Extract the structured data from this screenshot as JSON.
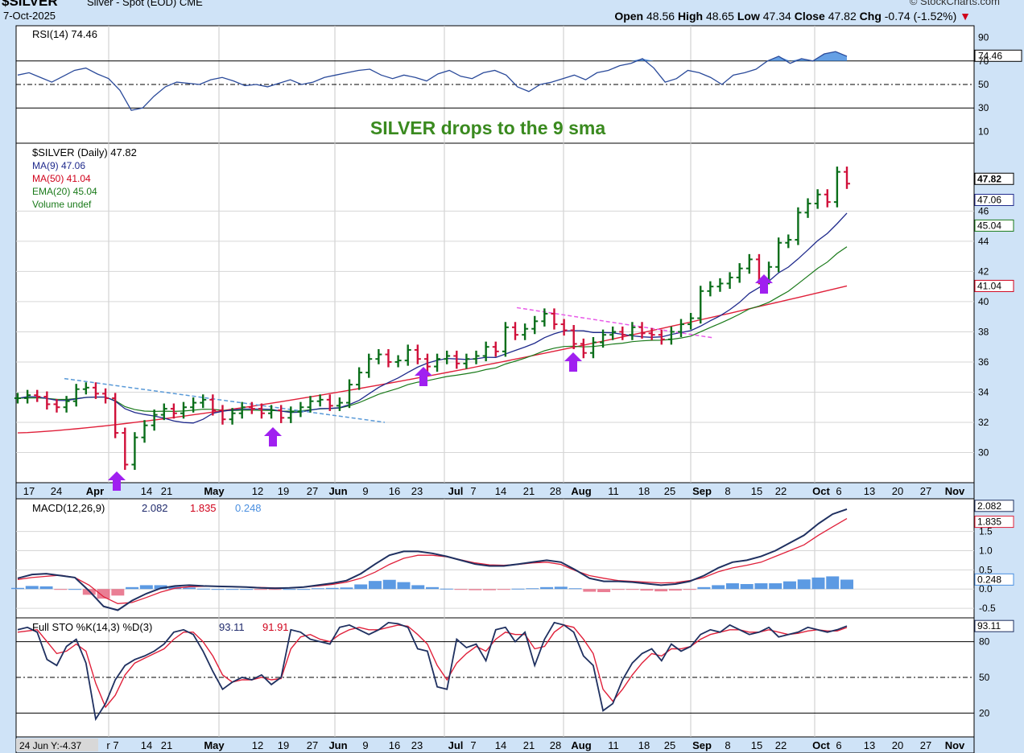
{
  "header": {
    "symbol": "$SILVER",
    "description": "Silver - Spot (EOD) CME",
    "date": "7-Oct-2025",
    "brand": "© StockCharts.com",
    "ohlc": {
      "open_label": "Open",
      "open": "48.56",
      "high_label": "High",
      "high": "48.65",
      "low_label": "Low",
      "low": "47.34",
      "close_label": "Close",
      "close": "47.82",
      "chg_label": "Chg",
      "chg": "-0.74 (-1.52%)"
    }
  },
  "annotation": {
    "text": "SILVER drops to the 9 sma",
    "color": "#3a8a1f"
  },
  "footer_readout": "24 Jun Y:-4.37",
  "x_axis": {
    "labels": [
      "17",
      "24",
      "Apr",
      "14",
      "21",
      "May",
      "12",
      "19",
      "27",
      "Jun",
      "9",
      "16",
      "23",
      "Jul",
      "7",
      "14",
      "21",
      "28",
      "Aug",
      "11",
      "18",
      "25",
      "Sep",
      "8",
      "15",
      "22",
      "Oct",
      "6",
      "13",
      "20",
      "27",
      "Nov"
    ],
    "bottom_labels": [
      "r 7",
      "14",
      "21",
      "May",
      "12",
      "19",
      "27",
      "Jun",
      "9",
      "16",
      "23",
      "Jul",
      "7",
      "14",
      "21",
      "28",
      "Aug",
      "11",
      "18",
      "25",
      "Sep",
      "8",
      "15",
      "22",
      "Oct",
      "6",
      "13",
      "20",
      "27",
      "Nov"
    ]
  },
  "chart_data": [
    {
      "type": "line",
      "panel": "rsi",
      "legend": "RSI(14) 74.46",
      "series": [
        {
          "name": "RSI(14)",
          "values": [
            58,
            60,
            56,
            52,
            57,
            62,
            64,
            59,
            55,
            45,
            28,
            30,
            40,
            48,
            52,
            51,
            50,
            54,
            56,
            53,
            49,
            50,
            48,
            51,
            54,
            50,
            52,
            56,
            58,
            60,
            62,
            63,
            58,
            55,
            58,
            56,
            53,
            59,
            62,
            57,
            55,
            60,
            62,
            58,
            48,
            44,
            50,
            52,
            55,
            58,
            54,
            60,
            62,
            66,
            68,
            72,
            64,
            52,
            55,
            62,
            60,
            56,
            50,
            58,
            60,
            63,
            70,
            74,
            68,
            72,
            70,
            76,
            78,
            74
          ]
        }
      ],
      "current_label": "74.46",
      "y_ticks": [
        "90",
        "70",
        "50",
        "30",
        "10"
      ],
      "ylim": [
        0,
        100
      ],
      "reference_lines": [
        70,
        50,
        30
      ]
    },
    {
      "type": "ohlc",
      "panel": "price",
      "legend": {
        "title": "$SILVER (Daily) 47.82",
        "ma9": "MA(9) 47.06",
        "ma50": "MA(50) 41.04",
        "ema20": "EMA(20) 45.04",
        "volume": "Volume undef"
      },
      "close": [
        33.6,
        33.8,
        33.7,
        33.2,
        33.0,
        33.4,
        34.2,
        34.3,
        33.9,
        33.6,
        31.3,
        29.2,
        31.0,
        31.8,
        32.5,
        32.9,
        32.6,
        33.0,
        33.3,
        33.5,
        32.8,
        32.2,
        32.6,
        33.0,
        32.9,
        32.6,
        32.8,
        32.3,
        32.7,
        33.0,
        33.4,
        33.5,
        33.1,
        33.3,
        34.5,
        35.3,
        36.2,
        36.5,
        36.0,
        36.1,
        36.8,
        36.2,
        35.7,
        36.2,
        36.4,
        35.9,
        36.2,
        36.4,
        37.0,
        36.7,
        38.3,
        37.8,
        38.2,
        38.7,
        39.2,
        38.5,
        38.1,
        37.2,
        36.6,
        37.3,
        37.8,
        38.0,
        37.8,
        38.3,
        37.9,
        37.8,
        37.5,
        38.0,
        38.5,
        38.9,
        40.7,
        41.0,
        41.2,
        41.6,
        42.2,
        42.8,
        41.5,
        42.3,
        43.9,
        44.1,
        45.9,
        46.5,
        47.1,
        46.6,
        48.6,
        47.82
      ],
      "ma9_end": 47.06,
      "ma50_end": 41.04,
      "ema20_end": 45.04,
      "y_ticks": [
        30,
        32,
        34,
        36,
        38,
        40,
        42,
        44,
        46
      ],
      "ylim": [
        28.0,
        50.5
      ],
      "right_labels": [
        "47.82",
        "47.06",
        "45.04",
        "41.04"
      ],
      "markers": [
        "arrow",
        "arrow",
        "arrow",
        "arrow",
        "arrow"
      ]
    },
    {
      "type": "line",
      "panel": "macd",
      "legend": {
        "name": "MACD(12,26,9)",
        "macd": "2.082",
        "signal": "1.835",
        "hist": "0.248"
      },
      "macd": [
        0.28,
        0.38,
        0.4,
        0.35,
        0.3,
        -0.05,
        -0.45,
        -0.55,
        -0.3,
        -0.12,
        0.02,
        0.08,
        0.1,
        0.08,
        0.07,
        0.06,
        0.05,
        0.03,
        0.02,
        0.03,
        0.05,
        0.1,
        0.15,
        0.22,
        0.4,
        0.65,
        0.88,
        0.98,
        0.98,
        0.93,
        0.85,
        0.75,
        0.65,
        0.6,
        0.6,
        0.65,
        0.7,
        0.75,
        0.7,
        0.5,
        0.28,
        0.2,
        0.2,
        0.18,
        0.14,
        0.1,
        0.13,
        0.2,
        0.35,
        0.55,
        0.7,
        0.75,
        0.85,
        1.0,
        1.2,
        1.4,
        1.7,
        1.95,
        2.08
      ],
      "signal": [
        0.25,
        0.3,
        0.33,
        0.36,
        0.3,
        0.1,
        -0.2,
        -0.38,
        -0.35,
        -0.22,
        -0.08,
        0.02,
        0.06,
        0.07,
        0.07,
        0.06,
        0.05,
        0.04,
        0.03,
        0.03,
        0.05,
        0.08,
        0.12,
        0.18,
        0.28,
        0.44,
        0.64,
        0.8,
        0.88,
        0.88,
        0.84,
        0.76,
        0.68,
        0.63,
        0.62,
        0.64,
        0.68,
        0.7,
        0.64,
        0.48,
        0.35,
        0.28,
        0.22,
        0.2,
        0.18,
        0.16,
        0.17,
        0.22,
        0.3,
        0.45,
        0.55,
        0.62,
        0.7,
        0.85,
        1.0,
        1.15,
        1.4,
        1.62,
        1.835
      ],
      "y_ticks": [
        "1.5",
        "1.0",
        "0.5",
        "0.0",
        "-0.5"
      ],
      "ylim": [
        -0.75,
        2.35
      ],
      "right_labels": [
        "2.082",
        "1.835",
        "0.248"
      ]
    },
    {
      "type": "line",
      "panel": "stochastic",
      "legend": {
        "name": "Full STO %K(14,3) %D(3)",
        "k": "93.11",
        "d": "91.91"
      },
      "k": [
        90,
        92,
        88,
        65,
        60,
        76,
        82,
        62,
        15,
        28,
        48,
        60,
        65,
        68,
        72,
        78,
        88,
        90,
        86,
        72,
        55,
        40,
        46,
        50,
        48,
        52,
        44,
        50,
        90,
        88,
        82,
        80,
        78,
        92,
        94,
        90,
        86,
        90,
        96,
        95,
        92,
        74,
        72,
        42,
        40,
        82,
        75,
        78,
        64,
        90,
        92,
        80,
        88,
        60,
        82,
        96,
        94,
        88,
        68,
        60,
        22,
        28,
        48,
        62,
        70,
        74,
        64,
        78,
        72,
        76,
        86,
        90,
        88,
        94,
        90,
        86,
        88,
        92,
        84,
        86,
        88,
        92,
        90,
        88,
        90,
        93.11
      ],
      "d": [
        88,
        89,
        90,
        80,
        70,
        72,
        78,
        72,
        45,
        25,
        35,
        52,
        62,
        66,
        70,
        74,
        82,
        88,
        88,
        80,
        68,
        52,
        46,
        48,
        48,
        50,
        48,
        49,
        74,
        84,
        86,
        82,
        80,
        86,
        90,
        92,
        90,
        90,
        92,
        94,
        93,
        86,
        78,
        60,
        48,
        62,
        70,
        76,
        72,
        82,
        88,
        86,
        86,
        74,
        76,
        88,
        94,
        92,
        82,
        70,
        40,
        30,
        40,
        52,
        62,
        70,
        68,
        74,
        74,
        76,
        82,
        86,
        88,
        90,
        90,
        88,
        88,
        90,
        88,
        86,
        87,
        89,
        90,
        89,
        89,
        91.91
      ],
      "y_ticks": [
        "80",
        "50",
        "20"
      ],
      "ylim": [
        0,
        100
      ],
      "reference_lines": [
        80,
        50,
        20
      ],
      "right_labels": [
        "93.11"
      ]
    }
  ]
}
